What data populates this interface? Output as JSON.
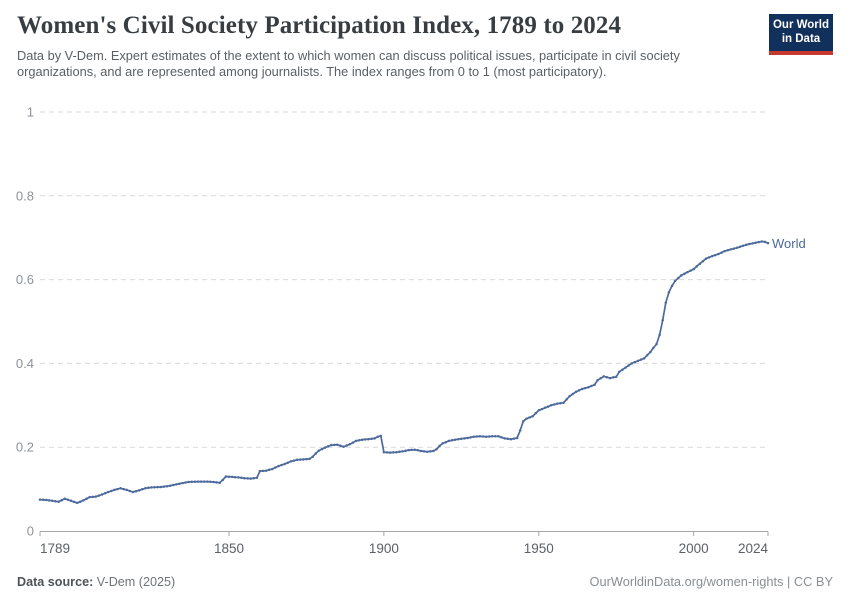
{
  "header": {
    "title": "Women's Civil Society Participation Index, 1789 to 2024",
    "subtitle": "Data by V-Dem. Expert estimates of the extent to which women can discuss political issues, participate in civil society organizations, and are represented among journalists. The index ranges from 0 to 1 (most participatory)."
  },
  "logo": {
    "line1": "Our World",
    "line2": "in Data"
  },
  "annotations": {
    "world_label": "World"
  },
  "footer": {
    "source_label": "Data source:",
    "source_value": " V-Dem (2025)",
    "right_text": "OurWorldinData.org/women-rights | CC BY"
  },
  "colors": {
    "accent_line": "#4c6a9c",
    "logo_navy": "#12305c",
    "logo_red": "#c7392f",
    "grid": "#d9d9d9",
    "axis_line": "#a5a5a5",
    "y_tick_text": "#8d9398",
    "x_tick_text": "#5b6166"
  },
  "chart_data": {
    "type": "line",
    "title": "Women's Civil Society Participation Index, 1789 to 2024",
    "xlabel": "",
    "ylabel": "",
    "xlim": [
      1789,
      2024
    ],
    "ylim": [
      0,
      1
    ],
    "grid": "horizontal-dashed",
    "legend": "end-of-line-label",
    "x_ticks": [
      1789,
      1850,
      1900,
      1950,
      2000,
      2024
    ],
    "x_tick_labels": [
      "1789",
      "1850",
      "1900",
      "1950",
      "2000",
      "2024"
    ],
    "y_ticks": [
      0,
      0.2,
      0.4,
      0.6,
      0.8,
      1
    ],
    "y_tick_labels": [
      "0",
      "0.2",
      "0.4",
      "0.6",
      "0.8",
      "1"
    ],
    "series": [
      {
        "name": "World",
        "color": "#4c6a9c",
        "points": [
          [
            1789,
            0.075
          ],
          [
            1791,
            0.074
          ],
          [
            1793,
            0.072
          ],
          [
            1795,
            0.07
          ],
          [
            1797,
            0.077
          ],
          [
            1799,
            0.072
          ],
          [
            1801,
            0.067
          ],
          [
            1803,
            0.073
          ],
          [
            1805,
            0.081
          ],
          [
            1807,
            0.082
          ],
          [
            1809,
            0.087
          ],
          [
            1811,
            0.093
          ],
          [
            1813,
            0.098
          ],
          [
            1815,
            0.102
          ],
          [
            1817,
            0.098
          ],
          [
            1819,
            0.093
          ],
          [
            1821,
            0.097
          ],
          [
            1823,
            0.102
          ],
          [
            1825,
            0.104
          ],
          [
            1828,
            0.105
          ],
          [
            1831,
            0.108
          ],
          [
            1834,
            0.113
          ],
          [
            1837,
            0.117
          ],
          [
            1840,
            0.118
          ],
          [
            1843,
            0.118
          ],
          [
            1845,
            0.117
          ],
          [
            1847,
            0.115
          ],
          [
            1848,
            0.122
          ],
          [
            1849,
            0.13
          ],
          [
            1851,
            0.129
          ],
          [
            1853,
            0.128
          ],
          [
            1855,
            0.126
          ],
          [
            1857,
            0.125
          ],
          [
            1859,
            0.127
          ],
          [
            1860,
            0.143
          ],
          [
            1862,
            0.144
          ],
          [
            1864,
            0.148
          ],
          [
            1866,
            0.155
          ],
          [
            1868,
            0.16
          ],
          [
            1870,
            0.166
          ],
          [
            1872,
            0.17
          ],
          [
            1874,
            0.171
          ],
          [
            1876,
            0.172
          ],
          [
            1877,
            0.177
          ],
          [
            1878,
            0.185
          ],
          [
            1879,
            0.192
          ],
          [
            1881,
            0.199
          ],
          [
            1883,
            0.205
          ],
          [
            1885,
            0.206
          ],
          [
            1887,
            0.201
          ],
          [
            1889,
            0.207
          ],
          [
            1891,
            0.215
          ],
          [
            1893,
            0.218
          ],
          [
            1895,
            0.219
          ],
          [
            1897,
            0.221
          ],
          [
            1898,
            0.225
          ],
          [
            1899,
            0.227
          ],
          [
            1900,
            0.188
          ],
          [
            1902,
            0.187
          ],
          [
            1904,
            0.188
          ],
          [
            1906,
            0.19
          ],
          [
            1908,
            0.193
          ],
          [
            1910,
            0.194
          ],
          [
            1912,
            0.191
          ],
          [
            1914,
            0.189
          ],
          [
            1916,
            0.191
          ],
          [
            1917,
            0.195
          ],
          [
            1918,
            0.203
          ],
          [
            1919,
            0.209
          ],
          [
            1921,
            0.215
          ],
          [
            1923,
            0.218
          ],
          [
            1925,
            0.22
          ],
          [
            1927,
            0.222
          ],
          [
            1929,
            0.225
          ],
          [
            1931,
            0.226
          ],
          [
            1933,
            0.225
          ],
          [
            1935,
            0.226
          ],
          [
            1937,
            0.226
          ],
          [
            1939,
            0.221
          ],
          [
            1941,
            0.219
          ],
          [
            1943,
            0.222
          ],
          [
            1944,
            0.24
          ],
          [
            1945,
            0.262
          ],
          [
            1946,
            0.268
          ],
          [
            1948,
            0.274
          ],
          [
            1950,
            0.288
          ],
          [
            1952,
            0.294
          ],
          [
            1954,
            0.3
          ],
          [
            1956,
            0.304
          ],
          [
            1958,
            0.306
          ],
          [
            1960,
            0.322
          ],
          [
            1962,
            0.332
          ],
          [
            1964,
            0.339
          ],
          [
            1966,
            0.343
          ],
          [
            1968,
            0.349
          ],
          [
            1969,
            0.36
          ],
          [
            1971,
            0.369
          ],
          [
            1973,
            0.365
          ],
          [
            1975,
            0.368
          ],
          [
            1976,
            0.38
          ],
          [
            1978,
            0.39
          ],
          [
            1980,
            0.4
          ],
          [
            1982,
            0.406
          ],
          [
            1984,
            0.412
          ],
          [
            1986,
            0.427
          ],
          [
            1987,
            0.437
          ],
          [
            1988,
            0.446
          ],
          [
            1989,
            0.468
          ],
          [
            1990,
            0.503
          ],
          [
            1991,
            0.545
          ],
          [
            1992,
            0.57
          ],
          [
            1993,
            0.585
          ],
          [
            1994,
            0.597
          ],
          [
            1996,
            0.61
          ],
          [
            1998,
            0.618
          ],
          [
            2000,
            0.625
          ],
          [
            2002,
            0.638
          ],
          [
            2004,
            0.65
          ],
          [
            2006,
            0.656
          ],
          [
            2008,
            0.661
          ],
          [
            2010,
            0.668
          ],
          [
            2012,
            0.672
          ],
          [
            2014,
            0.676
          ],
          [
            2016,
            0.681
          ],
          [
            2018,
            0.685
          ],
          [
            2020,
            0.688
          ],
          [
            2022,
            0.691
          ],
          [
            2023,
            0.69
          ],
          [
            2024,
            0.687
          ]
        ]
      }
    ]
  }
}
